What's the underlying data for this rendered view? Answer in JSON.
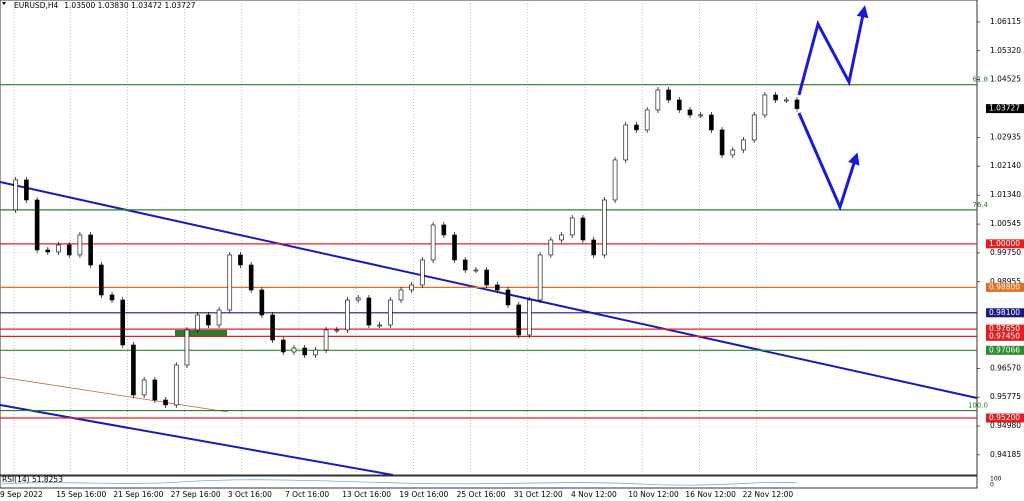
{
  "header": {
    "symbol": "EURUSD,H4",
    "ohlc": "1.03500 1.03830 1.03472 1.03727"
  },
  "chart": {
    "type": "candlestick",
    "ylim": [
      0.9363,
      1.0672
    ],
    "yticks": [
      {
        "value": 1.06115,
        "label": "1.06115"
      },
      {
        "value": 1.0532,
        "label": "1.05320"
      },
      {
        "value": 1.04525,
        "label": "1.04525"
      },
      {
        "value": 1.02935,
        "label": "1.02935"
      },
      {
        "value": 1.0214,
        "label": "1.02140"
      },
      {
        "value": 1.0134,
        "label": "1.01340"
      },
      {
        "value": 1.00545,
        "label": "1.00545"
      },
      {
        "value": 0.9975,
        "label": "0.99750"
      },
      {
        "value": 0.98955,
        "label": "0.98955"
      },
      {
        "value": 0.9657,
        "label": "0.96570"
      },
      {
        "value": 0.95775,
        "label": "0.95775"
      },
      {
        "value": 0.9498,
        "label": "0.94980"
      },
      {
        "value": 0.94185,
        "label": "0.94185"
      }
    ],
    "current": {
      "value": 1.03727,
      "label": "1.03727"
    },
    "levels": [
      {
        "value": 1.04386,
        "color": "#2e7d2e",
        "fib": "61.8"
      },
      {
        "value": 1.00936,
        "color": "#2e7d2e",
        "fib": "76.4"
      },
      {
        "value": 1.0,
        "color": "#e02020",
        "label": "1.00000"
      },
      {
        "value": 0.988,
        "color": "#e07020",
        "label": "0.98800"
      },
      {
        "value": 0.981,
        "color": "#1a1a80",
        "label": "0.98100"
      },
      {
        "value": 0.9765,
        "color": "#e02020",
        "label": "0.97650"
      },
      {
        "value": 0.9745,
        "color": "#e02020",
        "label": "0.97450"
      },
      {
        "value": 0.97066,
        "color": "#2e8b2e",
        "label": "0.97066"
      },
      {
        "value": 0.95406,
        "color": "#2e7d2e",
        "fib": "100.0"
      },
      {
        "value": 0.952,
        "color": "#e02020",
        "label": "0.95200"
      }
    ],
    "closes": [
      1.00934,
      1.01761,
      1.01209,
      0.99831,
      0.99776,
      0.99969,
      0.99694,
      1.00245,
      0.99418,
      0.98591,
      0.98453,
      0.97213,
      0.95835,
      0.96249,
      0.95697,
      0.9556,
      0.96662,
      0.97627,
      0.9804,
      0.97764,
      0.98178,
      0.99694,
      0.99418,
      0.98729,
      0.9804,
      0.97351,
      0.9702,
      0.9713,
      0.96938,
      0.97075,
      0.97627,
      0.97627,
      0.98453,
      0.98508,
      0.97764,
      0.97764,
      0.98453,
      0.98729,
      0.98867,
      0.99556,
      1.0052,
      1.00245,
      0.99556,
      0.9928,
      0.9928,
      0.98867,
      0.98729,
      0.98316,
      0.97489,
      0.98453,
      0.99694,
      1.00107,
      1.00245,
      1.00713,
      1.00107,
      0.99694,
      1.01209,
      1.02312,
      1.03276,
      1.03139,
      1.0369,
      1.04241,
      1.03965,
      1.0369,
      1.03552,
      1.03552,
      1.03139,
      1.0245,
      1.02587,
      1.02863,
      1.03552,
      1.04103,
      1.03965,
      1.03965,
      1.03727
    ],
    "times": [
      "9 Sep 2022",
      "15 Sep 16:00",
      "21 Sep 16:00",
      "27 Sep 16:00",
      "3 Oct 16:00",
      "7 Oct 16:00",
      "13 Oct 16:00",
      "19 Oct 16:00",
      "25 Oct 16:00",
      "31 Oct 12:00",
      "4 Nov 12:00",
      "10 Nov 12:00",
      "16 Nov 12:00",
      "22 Nov 12:00"
    ],
    "rsi": "RSI(14) 51.8253",
    "rsi_scale": [
      "100",
      "0"
    ]
  }
}
